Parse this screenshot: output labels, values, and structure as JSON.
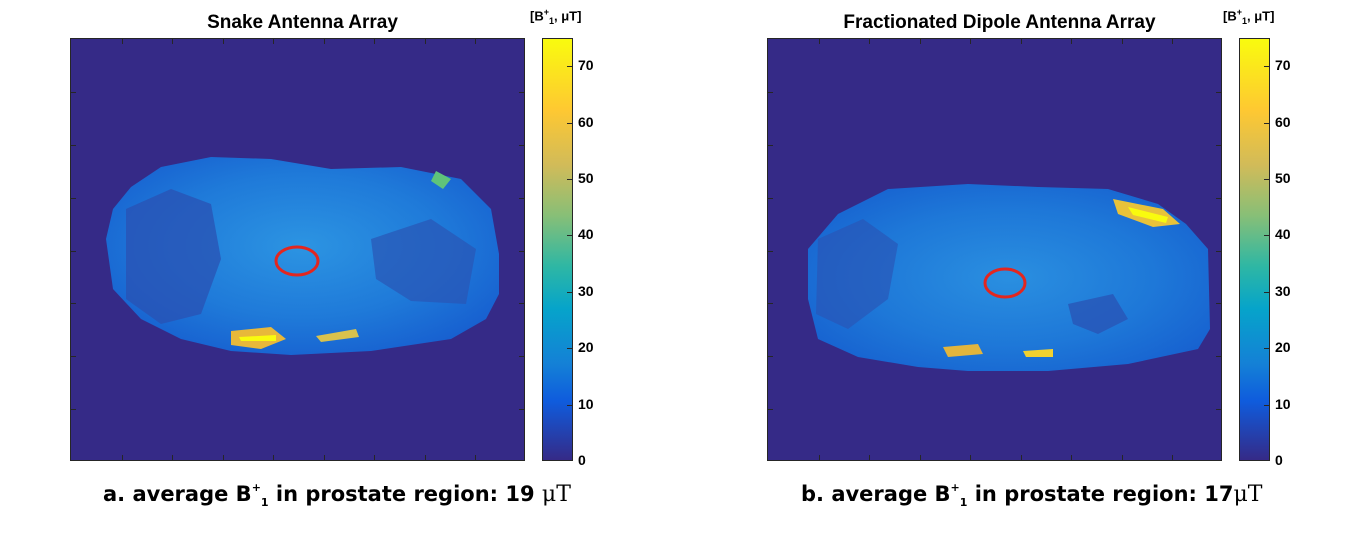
{
  "chart_data": [
    {
      "type": "heatmap",
      "title": "Snake Antenna Array",
      "colorbar_unit": "[B",
      "colorbar_unit_sup": "+",
      "colorbar_unit_sub": "1",
      "colorbar_unit_rest": ", μT]",
      "colorbar_ticks": [
        "0",
        "10",
        "20",
        "30",
        "40",
        "50",
        "60",
        "70"
      ],
      "colorbar_range": [
        0,
        75
      ],
      "roi_marker": "red circle (prostate region)",
      "caption_prefix": "a. average B",
      "caption_sup": "+",
      "caption_sub": "1",
      "caption_mid": " in prostate region: 19 ",
      "caption_unit": "μT",
      "average_value": 19
    },
    {
      "type": "heatmap",
      "title": "Fractionated Dipole Antenna Array",
      "colorbar_unit": "[B",
      "colorbar_unit_sup": "+",
      "colorbar_unit_sub": "1",
      "colorbar_unit_rest": ", μT]",
      "colorbar_ticks": [
        "0",
        "10",
        "20",
        "30",
        "40",
        "50",
        "60",
        "70"
      ],
      "colorbar_range": [
        0,
        75
      ],
      "roi_marker": "red circle (prostate region)",
      "caption_prefix": "b. average B",
      "caption_sup": "+",
      "caption_sub": "1",
      "caption_mid": " in prostate region: 17",
      "caption_unit": "μT",
      "average_value": 17
    }
  ],
  "colors": {
    "background": "#352a87",
    "body_mid": "#1a6fd8",
    "body_light": "#2a8fe0",
    "body_dark": "#2748a8",
    "hot_yellow": "#f9fb0e",
    "hot_orange": "#e8b83a",
    "green": "#6cc27a",
    "roi": "#e3261f"
  }
}
